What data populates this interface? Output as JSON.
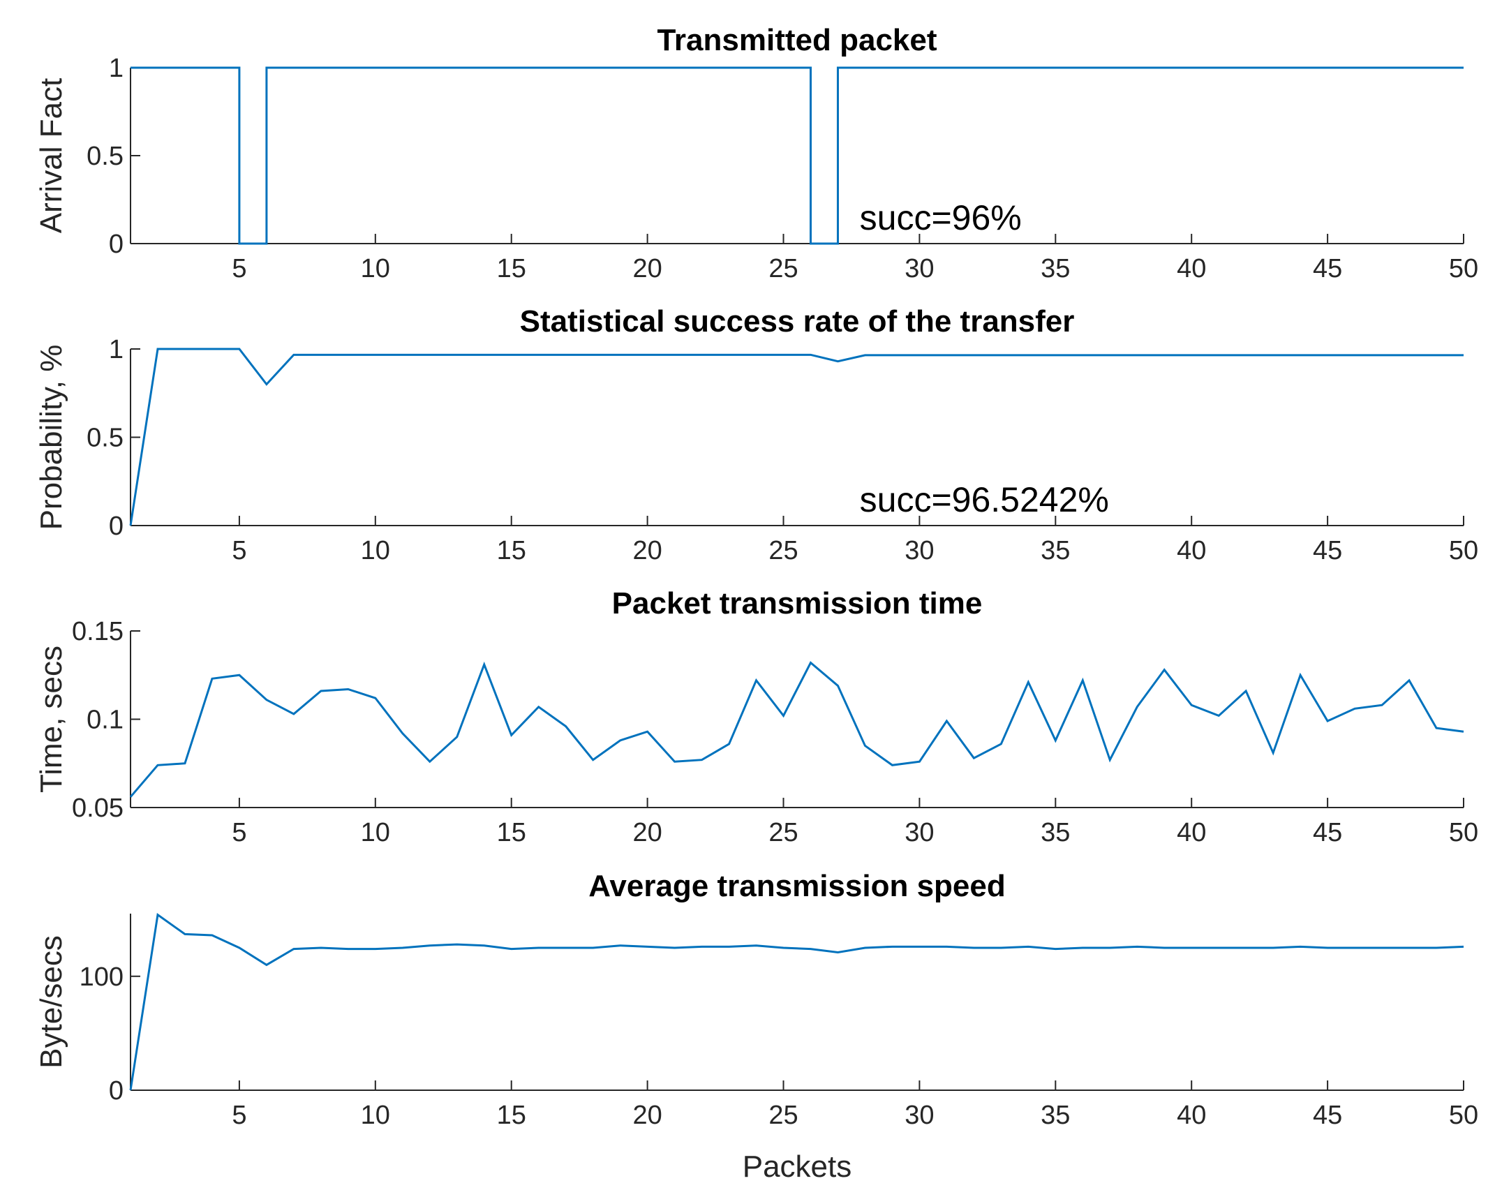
{
  "figure": {
    "xlabel": "Packets"
  },
  "colors": {
    "line": "#0072BD",
    "axis": "#262626"
  },
  "chart_data": [
    {
      "type": "line",
      "step": true,
      "title": "Transmitted packet",
      "ylabel": "Arrival Fact",
      "xlabel": "",
      "xlim": [
        1,
        50
      ],
      "ylim": [
        0,
        1
      ],
      "xticks": [
        5,
        10,
        15,
        20,
        25,
        30,
        35,
        40,
        45,
        50
      ],
      "yticks": [
        0,
        0.5,
        1
      ],
      "ytick_labels": [
        "0",
        "0.5",
        "1"
      ],
      "x": [
        1,
        2,
        3,
        4,
        5,
        6,
        7,
        8,
        9,
        10,
        11,
        12,
        13,
        14,
        15,
        16,
        17,
        18,
        19,
        20,
        21,
        22,
        23,
        24,
        25,
        26,
        27,
        28,
        29,
        30,
        31,
        32,
        33,
        34,
        35,
        36,
        37,
        38,
        39,
        40,
        41,
        42,
        43,
        44,
        45,
        46,
        47,
        48,
        49,
        50
      ],
      "y": [
        1,
        1,
        1,
        1,
        0,
        1,
        1,
        1,
        1,
        1,
        1,
        1,
        1,
        1,
        1,
        1,
        1,
        1,
        1,
        1,
        1,
        1,
        1,
        1,
        1,
        0,
        1,
        1,
        1,
        1,
        1,
        1,
        1,
        1,
        1,
        1,
        1,
        1,
        1,
        1,
        1,
        1,
        1,
        1,
        1,
        1,
        1,
        1,
        1,
        1
      ],
      "annotation": {
        "text": "succ=96%",
        "x": 27.8,
        "y": 0.15
      }
    },
    {
      "type": "line",
      "title": "Statistical success rate of the transfer",
      "ylabel": "Probability, %",
      "xlabel": "",
      "xlim": [
        1,
        50
      ],
      "ylim": [
        0,
        1
      ],
      "xticks": [
        5,
        10,
        15,
        20,
        25,
        30,
        35,
        40,
        45,
        50
      ],
      "yticks": [
        0,
        0.5,
        1
      ],
      "ytick_labels": [
        "0",
        "0.5",
        "1"
      ],
      "x": [
        1,
        2,
        3,
        4,
        5,
        6,
        7,
        8,
        9,
        10,
        11,
        12,
        13,
        14,
        15,
        16,
        17,
        18,
        19,
        20,
        21,
        22,
        23,
        24,
        25,
        26,
        27,
        28,
        29,
        30,
        31,
        32,
        33,
        34,
        35,
        36,
        37,
        38,
        39,
        40,
        41,
        42,
        43,
        44,
        45,
        46,
        47,
        48,
        49,
        50
      ],
      "y": [
        0,
        1,
        1,
        1,
        1,
        0.8,
        0.967,
        0.967,
        0.967,
        0.967,
        0.967,
        0.967,
        0.967,
        0.967,
        0.967,
        0.967,
        0.967,
        0.967,
        0.967,
        0.967,
        0.967,
        0.967,
        0.967,
        0.967,
        0.967,
        0.967,
        0.93,
        0.965,
        0.965,
        0.965,
        0.965,
        0.965,
        0.965,
        0.965,
        0.965,
        0.965,
        0.965,
        0.965,
        0.965,
        0.965,
        0.965,
        0.965,
        0.965,
        0.965,
        0.965,
        0.965,
        0.965,
        0.965,
        0.965,
        0.965
      ],
      "annotation": {
        "text": "succ=96.5242%",
        "x": 27.8,
        "y": 0.15
      }
    },
    {
      "type": "line",
      "title": "Packet transmission time",
      "ylabel": "Time, secs",
      "xlabel": "",
      "xlim": [
        1,
        50
      ],
      "ylim": [
        0.05,
        0.15
      ],
      "xticks": [
        5,
        10,
        15,
        20,
        25,
        30,
        35,
        40,
        45,
        50
      ],
      "yticks": [
        0.05,
        0.1,
        0.15
      ],
      "ytick_labels": [
        "0.05",
        "0.1",
        "0.15"
      ],
      "x": [
        1,
        2,
        3,
        4,
        5,
        6,
        7,
        8,
        9,
        10,
        11,
        12,
        13,
        14,
        15,
        16,
        17,
        18,
        19,
        20,
        21,
        22,
        23,
        24,
        25,
        26,
        27,
        28,
        29,
        30,
        31,
        32,
        33,
        34,
        35,
        36,
        37,
        38,
        39,
        40,
        41,
        42,
        43,
        44,
        45,
        46,
        47,
        48,
        49,
        50
      ],
      "y": [
        0.056,
        0.074,
        0.075,
        0.123,
        0.125,
        0.111,
        0.103,
        0.116,
        0.117,
        0.112,
        0.092,
        0.076,
        0.09,
        0.131,
        0.091,
        0.107,
        0.096,
        0.077,
        0.088,
        0.093,
        0.076,
        0.077,
        0.086,
        0.122,
        0.102,
        0.132,
        0.119,
        0.085,
        0.074,
        0.076,
        0.099,
        0.078,
        0.086,
        0.121,
        0.088,
        0.122,
        0.077,
        0.107,
        0.128,
        0.108,
        0.102,
        0.116,
        0.081,
        0.125,
        0.099,
        0.106,
        0.108,
        0.122,
        0.095,
        0.093
      ]
    },
    {
      "type": "line",
      "title": "Average transmission speed",
      "ylabel": "Byte/secs",
      "xlabel": "Packets",
      "xlim": [
        1,
        50
      ],
      "ylim": [
        0,
        155
      ],
      "xticks": [
        5,
        10,
        15,
        20,
        25,
        30,
        35,
        40,
        45,
        50
      ],
      "yticks": [
        0,
        100
      ],
      "ytick_labels": [
        "0",
        "100"
      ],
      "x": [
        1,
        2,
        3,
        4,
        5,
        6,
        7,
        8,
        9,
        10,
        11,
        12,
        13,
        14,
        15,
        16,
        17,
        18,
        19,
        20,
        21,
        22,
        23,
        24,
        25,
        26,
        27,
        28,
        29,
        30,
        31,
        32,
        33,
        34,
        35,
        36,
        37,
        38,
        39,
        40,
        41,
        42,
        43,
        44,
        45,
        46,
        47,
        48,
        49,
        50
      ],
      "y": [
        0,
        154,
        137,
        136,
        125,
        110,
        124,
        125,
        124,
        124,
        125,
        127,
        128,
        127,
        124,
        125,
        125,
        125,
        127,
        126,
        125,
        126,
        126,
        127,
        125,
        124,
        121,
        125,
        126,
        126,
        126,
        125,
        125,
        126,
        124,
        125,
        125,
        126,
        125,
        125,
        125,
        125,
        125,
        126,
        125,
        125,
        125,
        125,
        125,
        126
      ]
    }
  ]
}
